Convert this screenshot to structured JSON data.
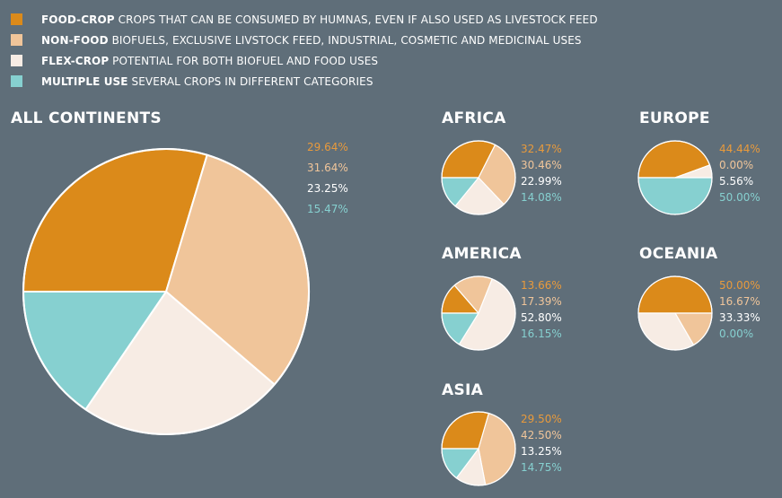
{
  "legend": [
    {
      "key": "FOOD-CROP",
      "desc": "CROPS THAT CAN BE CONSUMED BY HUMNAS, EVEN IF ALSO USED AS LIVESTOCK FEED",
      "color": "#db8a1a"
    },
    {
      "key": "NON-FOOD",
      "desc": "BIOFUELS, EXCLUSIVE LIVSTOCK FEED, INDUSTRIAL, COSMETIC AND MEDICINAL USES",
      "color": "#f0c59a"
    },
    {
      "key": "FLEX-CROP",
      "desc": "POTENTIAL FOR BOTH BIOFUEL AND FOOD USES",
      "color": "#f7ece4"
    },
    {
      "key": "MULTIPLE USE",
      "desc": "SEVERAL CROPS IN DIFFERENT CATEGORIES",
      "color": "#86d0d0"
    }
  ],
  "colors": {
    "food": "#db8a1a",
    "nonfood": "#f0c59a",
    "flex": "#f7ece4",
    "multi": "#86d0d0",
    "food_text": "#e89a3c",
    "nonfood_text": "#f0c59a",
    "flex_text": "#ffffff",
    "multi_text": "#86d0d0"
  },
  "chart_data": [
    {
      "type": "pie",
      "title": "ALL CONTINENTS",
      "categories": [
        "FOOD-CROP",
        "NON-FOOD",
        "FLEX-CROP",
        "MULTIPLE USE"
      ],
      "values": [
        29.64,
        31.64,
        23.25,
        15.47
      ],
      "labels": [
        "29.64%",
        "31.64%",
        "23.25%",
        "15.47%"
      ]
    },
    {
      "type": "pie",
      "title": "AFRICA",
      "categories": [
        "FOOD-CROP",
        "NON-FOOD",
        "FLEX-CROP",
        "MULTIPLE USE"
      ],
      "values": [
        32.47,
        30.46,
        22.99,
        14.08
      ],
      "labels": [
        "32.47%",
        "30.46%",
        "22.99%",
        "14.08%"
      ]
    },
    {
      "type": "pie",
      "title": "EUROPE",
      "categories": [
        "FOOD-CROP",
        "NON-FOOD",
        "FLEX-CROP",
        "MULTIPLE USE"
      ],
      "values": [
        44.44,
        0.0,
        5.56,
        50.0
      ],
      "labels": [
        "44.44%",
        "0.00%",
        "5.56%",
        "50.00%"
      ]
    },
    {
      "type": "pie",
      "title": "AMERICA",
      "categories": [
        "FOOD-CROP",
        "NON-FOOD",
        "FLEX-CROP",
        "MULTIPLE USE"
      ],
      "values": [
        13.66,
        17.39,
        52.8,
        16.15
      ],
      "labels": [
        "13.66%",
        "17.39%",
        "52.80%",
        "16.15%"
      ]
    },
    {
      "type": "pie",
      "title": "OCEANIA",
      "categories": [
        "FOOD-CROP",
        "NON-FOOD",
        "FLEX-CROP",
        "MULTIPLE USE"
      ],
      "values": [
        50.0,
        16.67,
        33.33,
        0.0
      ],
      "labels": [
        "50.00%",
        "16.67%",
        "33.33%",
        "0.00%"
      ]
    },
    {
      "type": "pie",
      "title": "ASIA",
      "categories": [
        "FOOD-CROP",
        "NON-FOOD",
        "FLEX-CROP",
        "MULTIPLE USE"
      ],
      "values": [
        29.5,
        42.5,
        13.25,
        14.75
      ],
      "labels": [
        "29.50%",
        "42.50%",
        "13.25%",
        "14.75%"
      ]
    }
  ]
}
